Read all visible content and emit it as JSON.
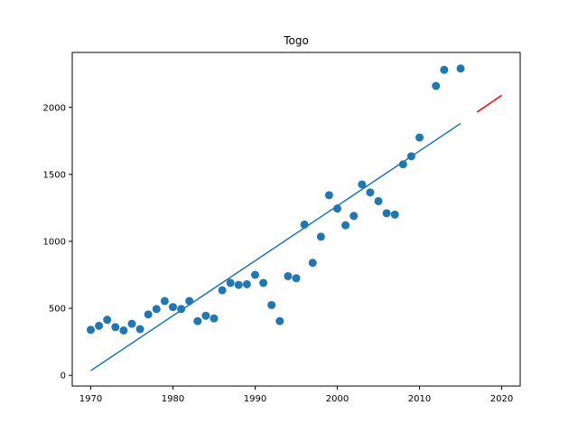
{
  "chart_data": {
    "type": "scatter",
    "title": "Togo",
    "xlabel": "",
    "ylabel": "",
    "xlim": [
      1967.75,
      2022.25
    ],
    "ylim": [
      -80,
      2410
    ],
    "grid": false,
    "x_ticks": [
      1970,
      1980,
      1990,
      2000,
      2010,
      2020
    ],
    "y_ticks": [
      0,
      500,
      1000,
      1500,
      2000
    ],
    "colors": {
      "points": "#1f77b4",
      "fit": "#1f77b4",
      "projection": "#ff0000"
    },
    "series": [
      {
        "type": "scatter",
        "x": [
          1970,
          1971,
          1972,
          1973,
          1974,
          1975,
          1976,
          1977,
          1978,
          1979,
          1980,
          1981,
          1982,
          1983,
          1984,
          1985,
          1986,
          1987,
          1988,
          1989,
          1990,
          1991,
          1992,
          1993,
          1994,
          1995,
          1996,
          1997,
          1998,
          1999,
          2000,
          2001,
          2002,
          2003,
          2004,
          2005,
          2006,
          2007,
          2008,
          2009,
          2010,
          2012,
          2013,
          2015
        ],
        "y": [
          340,
          370,
          415,
          360,
          335,
          385,
          345,
          455,
          495,
          555,
          510,
          495,
          555,
          405,
          445,
          425,
          635,
          690,
          675,
          680,
          750,
          690,
          525,
          405,
          740,
          725,
          1125,
          840,
          1035,
          1345,
          1245,
          1120,
          1190,
          1425,
          1365,
          1300,
          1210,
          1200,
          1575,
          1635,
          1775,
          2160,
          2280,
          2290
        ]
      },
      {
        "type": "line",
        "x": [
          1970,
          2015
        ],
        "y": [
          35,
          1880
        ]
      },
      {
        "type": "line",
        "x": [
          2017,
          2020
        ],
        "y": [
          1965,
          2090
        ]
      }
    ]
  }
}
